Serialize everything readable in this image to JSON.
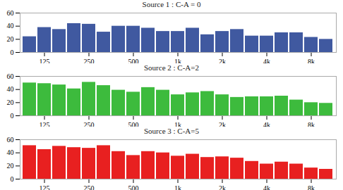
{
  "chart_data": [
    {
      "type": "bar",
      "title": "Source 1 : C-A = 0",
      "categories": [
        null,
        "125",
        null,
        null,
        "250",
        null,
        null,
        "500",
        null,
        null,
        "1k",
        null,
        null,
        "2k",
        null,
        null,
        "4k",
        null,
        null,
        "8k",
        null
      ],
      "values": [
        24,
        38,
        35,
        44,
        43,
        31,
        40,
        40,
        37,
        32,
        32,
        37,
        27,
        32,
        35,
        25,
        25,
        30,
        30,
        23,
        20
      ],
      "color": "#4059a0",
      "ylim": [
        0,
        60
      ],
      "yticks": [
        0,
        20,
        40,
        60
      ]
    },
    {
      "type": "bar",
      "title": "Source 2 : C-A=2",
      "categories": [
        null,
        "125",
        null,
        null,
        "250",
        null,
        null,
        "500",
        null,
        null,
        "1k",
        null,
        null,
        "2k",
        null,
        null,
        "4k",
        null,
        null,
        "8k",
        null
      ],
      "values": [
        50,
        49,
        47,
        41,
        51,
        46,
        39,
        36,
        43,
        39,
        32,
        35,
        37,
        32,
        28,
        29,
        29,
        30,
        24,
        20,
        19
      ],
      "color": "#3dbb3d",
      "ylim": [
        0,
        60
      ],
      "yticks": [
        0,
        20,
        40,
        60
      ]
    },
    {
      "type": "bar",
      "title": "Source 3 : C-A=5",
      "categories": [
        null,
        "125",
        null,
        null,
        "250",
        null,
        null,
        "500",
        null,
        null,
        "1k",
        null,
        null,
        "2k",
        null,
        null,
        "4k",
        null,
        null,
        "8k",
        null
      ],
      "values": [
        51,
        45,
        50,
        48,
        47,
        51,
        42,
        36,
        42,
        40,
        35,
        38,
        33,
        34,
        32,
        27,
        23,
        26,
        23,
        17,
        15
      ],
      "color": "#e82020",
      "ylim": [
        0,
        60
      ],
      "yticks": [
        0,
        20,
        40,
        60
      ]
    }
  ]
}
